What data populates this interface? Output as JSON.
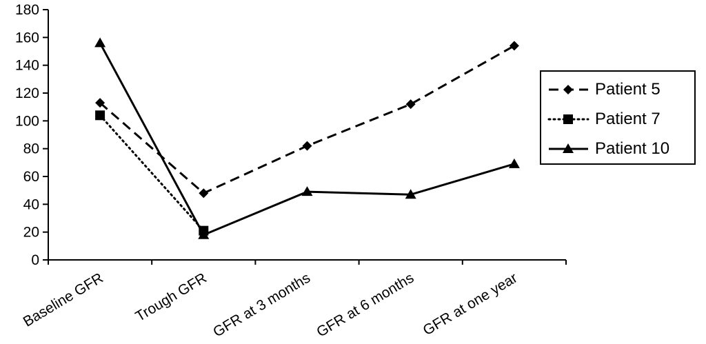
{
  "chart_data": {
    "type": "line",
    "categories": [
      "Baseline GFR",
      "Trough GFR",
      "GFR at 3 months",
      "GFR at 6 months",
      "GFR at one year"
    ],
    "ylim": [
      0,
      180
    ],
    "yticks": [
      0,
      20,
      40,
      60,
      80,
      100,
      120,
      140,
      160,
      180
    ],
    "ytick_labels": [
      "0",
      "20",
      "40",
      "60",
      "80",
      "100",
      "120",
      "140",
      "160",
      "180"
    ],
    "grid": false,
    "legend_position": "right",
    "series": [
      {
        "name": "Patient 5",
        "values": [
          113,
          48,
          82,
          112,
          154
        ],
        "line_style": "dashed",
        "marker": "diamond",
        "color": "#000000"
      },
      {
        "name": "Patient 7",
        "values": [
          104,
          21,
          null,
          null,
          null
        ],
        "line_style": "dotted",
        "marker": "square",
        "color": "#000000"
      },
      {
        "name": "Patient 10",
        "values": [
          156,
          18,
          49,
          47,
          69
        ],
        "line_style": "solid",
        "marker": "triangle",
        "color": "#000000"
      }
    ]
  }
}
